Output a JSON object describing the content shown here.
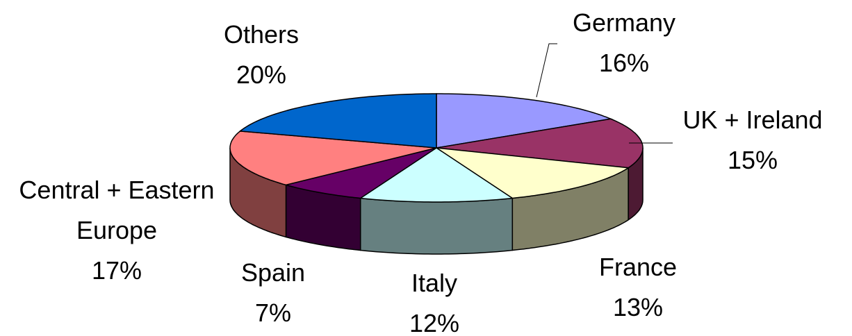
{
  "chart_data": {
    "type": "pie",
    "categories": [
      "Germany",
      "UK + Ireland",
      "France",
      "Italy",
      "Spain",
      "Central + Eastern Europe",
      "Others"
    ],
    "values": [
      16,
      15,
      13,
      12,
      7,
      17,
      20
    ],
    "value_labels": [
      "16%",
      "15%",
      "13%",
      "12%",
      "7%",
      "17%",
      "20%"
    ],
    "colors": [
      "#9999ff",
      "#993366",
      "#ffffcc",
      "#ccffff",
      "#660066",
      "#ff8080",
      "#0066cc"
    ]
  }
}
